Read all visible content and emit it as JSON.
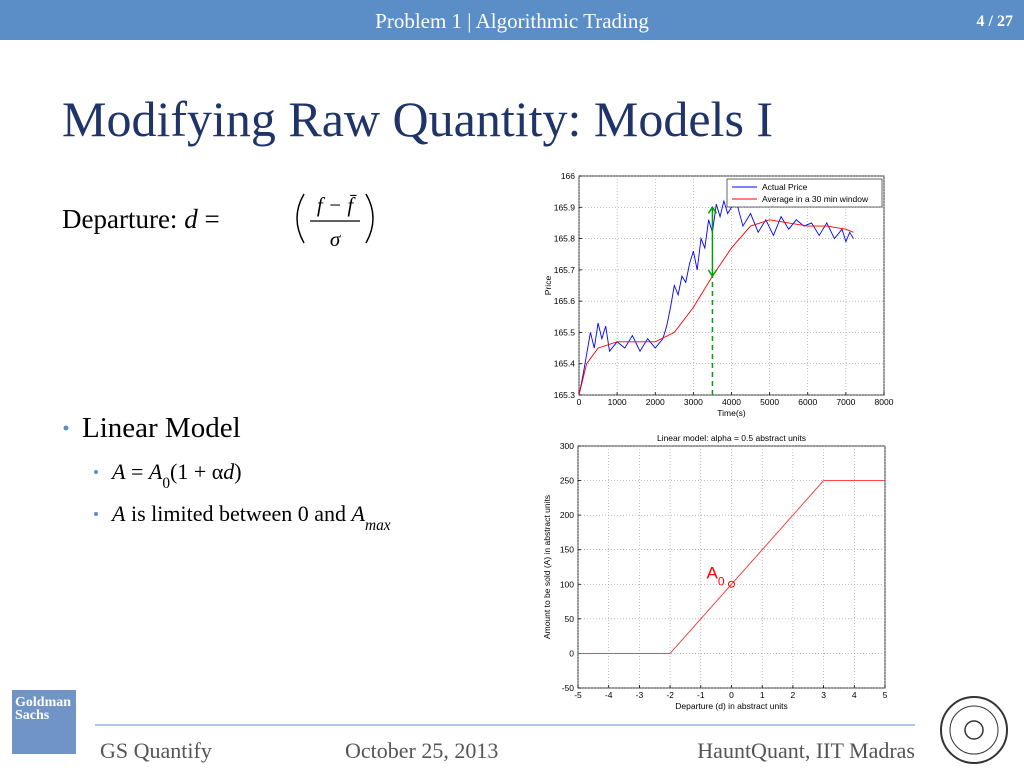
{
  "header": {
    "title": "Problem 1 | Algorithmic Trading",
    "page": "4 / 27"
  },
  "slide_title": "Modifying Raw Quantity: Models I",
  "departure": {
    "segments": [
      "Departure: ",
      "d",
      " = "
    ],
    "styles": [
      "n",
      "i",
      "n"
    ],
    "numerator": "f − f̄",
    "denominator": "σ"
  },
  "bullets": [
    {
      "text": "Linear Model",
      "children": [
        {
          "segments": [
            "A",
            " = ",
            "A",
            "0",
            "(1 + α",
            "d",
            ")"
          ],
          "styles": [
            "i",
            "n",
            "i",
            "sub",
            "n",
            "i",
            "n"
          ]
        },
        {
          "segments": [
            "A",
            " is limited between 0 and ",
            "A",
            "max"
          ],
          "styles": [
            "i",
            "n",
            "i",
            "subi"
          ]
        }
      ]
    }
  ],
  "chart_data": [
    {
      "type": "line",
      "xlabel": "Time(s)",
      "ylabel": "Price",
      "xlim": [
        0,
        8000
      ],
      "xticks": [
        0,
        1000,
        2000,
        3000,
        4000,
        5000,
        6000,
        7000,
        8000
      ],
      "ylim": [
        165.3,
        166
      ],
      "yticks": [
        165.3,
        165.4,
        165.5,
        165.6,
        165.7,
        165.8,
        165.9,
        166
      ],
      "grid": true,
      "legend": "upper right",
      "series": [
        {
          "name": "Actual Price",
          "color": "#0000ff",
          "x": [
            0,
            100,
            200,
            300,
            400,
            500,
            600,
            700,
            800,
            1000,
            1200,
            1400,
            1600,
            1800,
            2000,
            2200,
            2300,
            2400,
            2500,
            2600,
            2700,
            2800,
            2900,
            3000,
            3100,
            3200,
            3300,
            3400,
            3500,
            3600,
            3700,
            3800,
            3900,
            4000,
            4100,
            4300,
            4500,
            4700,
            4900,
            5100,
            5300,
            5500,
            5700,
            5900,
            6100,
            6300,
            6500,
            6700,
            6900,
            7000,
            7100,
            7200
          ],
          "values": [
            165.3,
            165.36,
            165.43,
            165.5,
            165.45,
            165.53,
            165.48,
            165.52,
            165.44,
            165.47,
            165.45,
            165.49,
            165.44,
            165.48,
            165.45,
            165.48,
            165.52,
            165.58,
            165.65,
            165.62,
            165.68,
            165.66,
            165.72,
            165.76,
            165.7,
            165.8,
            165.77,
            165.86,
            165.82,
            165.91,
            165.87,
            165.92,
            165.88,
            165.9,
            165.93,
            165.84,
            165.88,
            165.82,
            165.86,
            165.81,
            165.87,
            165.83,
            165.86,
            165.84,
            165.85,
            165.81,
            165.85,
            165.8,
            165.83,
            165.79,
            165.82,
            165.8
          ]
        },
        {
          "name": "Average in a 30 min window",
          "color": "#ff0000",
          "x": [
            0,
            200,
            500,
            1000,
            1500,
            2000,
            2500,
            3000,
            3500,
            4000,
            4500,
            5000,
            5500,
            6000,
            6500,
            7000,
            7200
          ],
          "values": [
            165.3,
            165.4,
            165.45,
            165.47,
            165.47,
            165.47,
            165.5,
            165.58,
            165.68,
            165.77,
            165.84,
            165.86,
            165.85,
            165.84,
            165.84,
            165.83,
            165.82
          ]
        }
      ],
      "arrow": {
        "x": 3500,
        "y_from": 165.68,
        "y_to": 165.9,
        "color": "#00a000"
      }
    },
    {
      "type": "line",
      "title": "Linear model: alpha = 0.5 abstract units",
      "xlabel": "Departure (d) in abstract units",
      "ylabel": "Amount to be sold (A) in abstract units",
      "xlim": [
        -5,
        5
      ],
      "xticks": [
        -5,
        -4,
        -3,
        -2,
        -1,
        0,
        1,
        2,
        3,
        4,
        5
      ],
      "ylim": [
        -50,
        300
      ],
      "yticks": [
        -50,
        0,
        50,
        100,
        150,
        200,
        250,
        300
      ],
      "grid": true,
      "series": [
        {
          "color": "#ff3030",
          "x": [
            -5,
            -2,
            3,
            5
          ],
          "values": [
            0,
            0,
            250,
            250
          ]
        }
      ],
      "point": {
        "x": 0,
        "y": 100,
        "label": "A",
        "label_sub": "0",
        "color": "#ff0000"
      }
    }
  ],
  "footer": {
    "left": "GS Quantify",
    "center": "October 25, 2013",
    "right": "HauntQuant, IIT Madras"
  },
  "logo": {
    "lines": [
      "Goldman",
      "Sachs"
    ]
  }
}
